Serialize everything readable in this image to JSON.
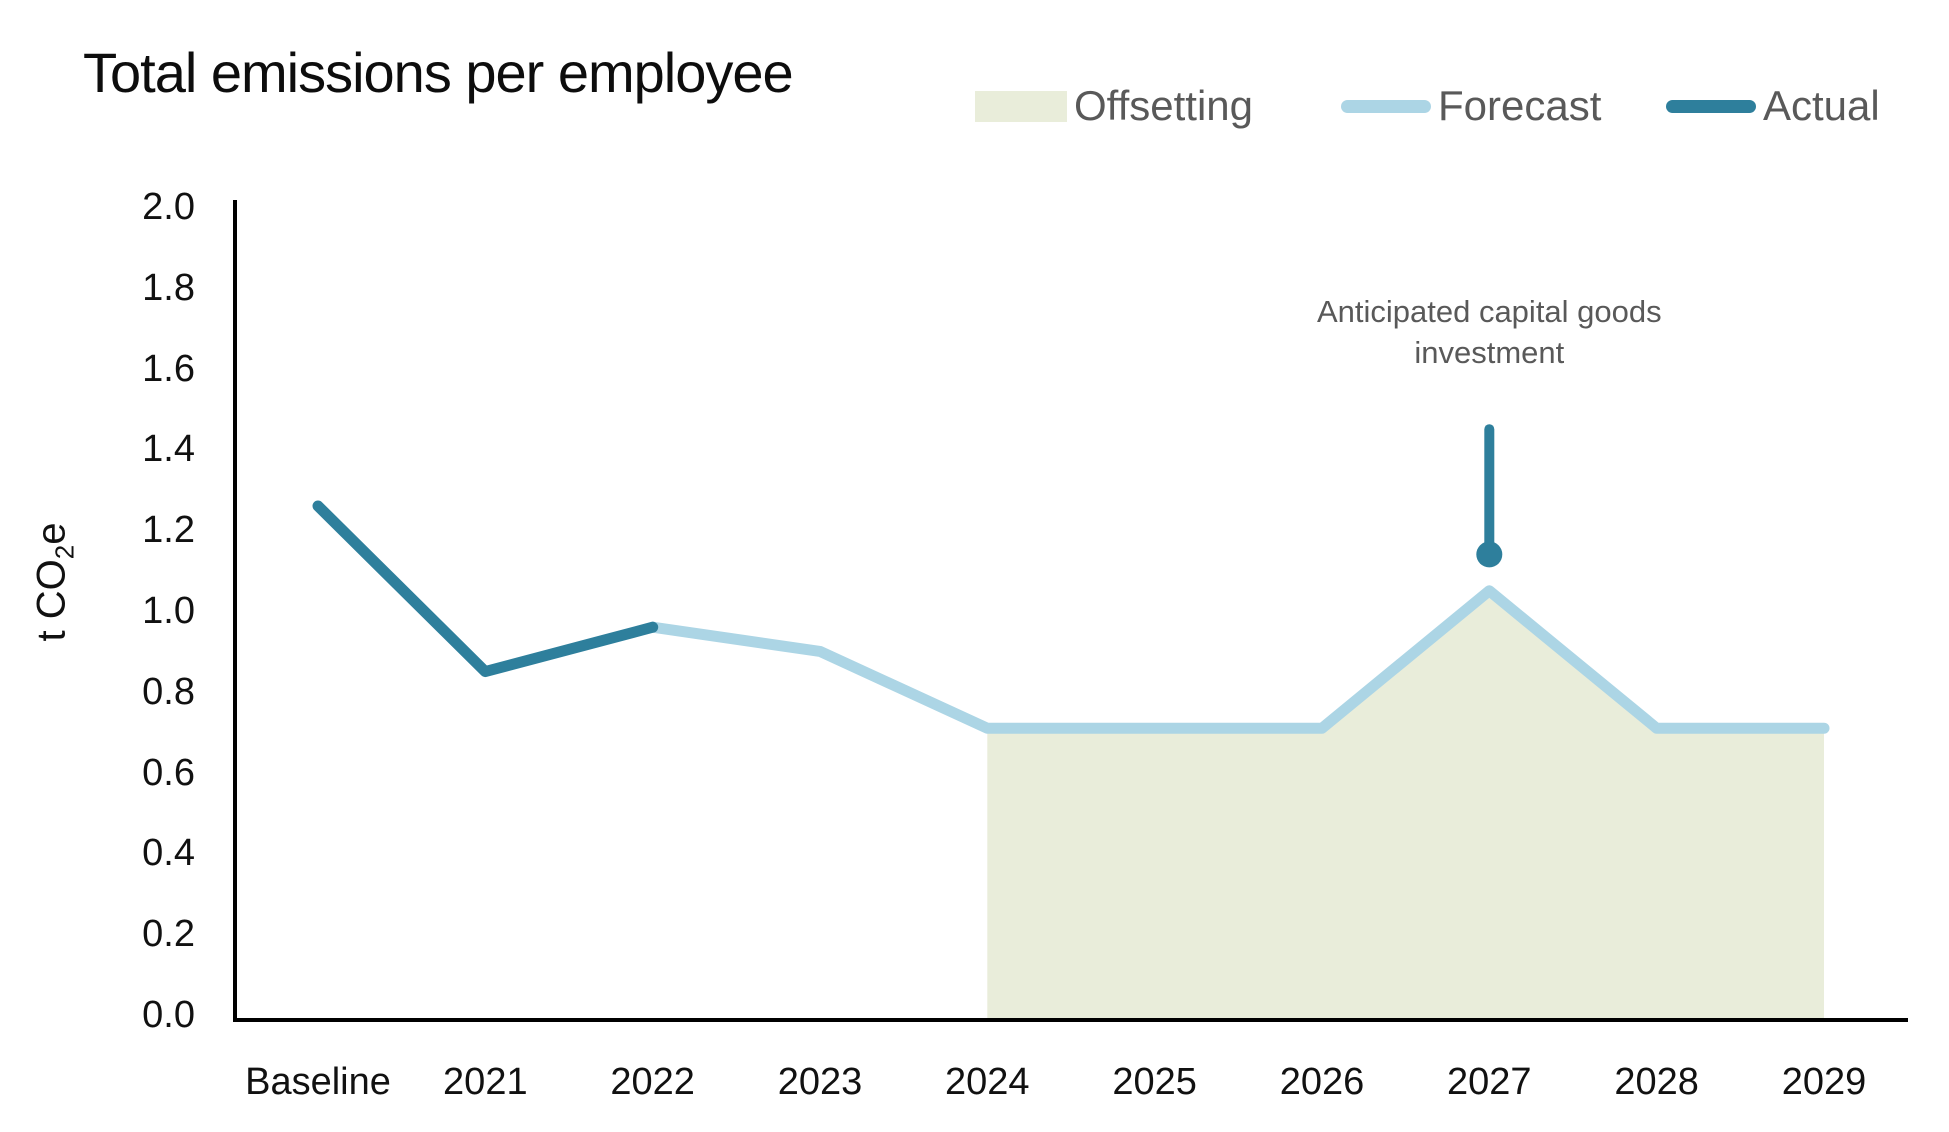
{
  "chart_data": {
    "type": "line",
    "title": "Total emissions per employee",
    "ylabel": {
      "text": "t CO2e",
      "pre": "t CO",
      "sub": "2",
      "post": "e"
    },
    "categories": [
      "Baseline",
      "2021",
      "2022",
      "2023",
      "2024",
      "2025",
      "2026",
      "2027",
      "2028",
      "2029"
    ],
    "ylim": [
      0.0,
      2.0
    ],
    "ytick_labels": [
      "0.0",
      "0.2",
      "0.4",
      "0.6",
      "0.8",
      "1.0",
      "1.2",
      "1.4",
      "1.6",
      "1.8",
      "2.0"
    ],
    "grid": false,
    "legend_position": "top-right",
    "series": [
      {
        "name": "Offsetting",
        "kind": "area",
        "color": "#e9edda",
        "values": [
          null,
          null,
          null,
          null,
          0.71,
          0.71,
          0.71,
          1.05,
          0.71,
          0.71
        ]
      },
      {
        "name": "Forecast",
        "kind": "line",
        "color": "#acd5e5",
        "values": [
          null,
          null,
          0.96,
          0.9,
          0.71,
          0.71,
          0.71,
          1.05,
          0.71,
          0.71
        ]
      },
      {
        "name": "Actual",
        "kind": "line",
        "color": "#2e7f9c",
        "values": [
          1.26,
          0.85,
          0.96,
          null,
          null,
          null,
          null,
          null,
          null,
          null
        ]
      }
    ],
    "annotation": {
      "text": "Anticipated capital goods investment",
      "category": "2027",
      "pointer_top_value": 1.45,
      "pointer_dot_value": 1.14
    }
  },
  "colors": {
    "actual": "#2e7f9c",
    "forecast": "#acd5e5",
    "offsetting": "#e9edda",
    "axis": "#000000",
    "text_gray": "#595959"
  }
}
